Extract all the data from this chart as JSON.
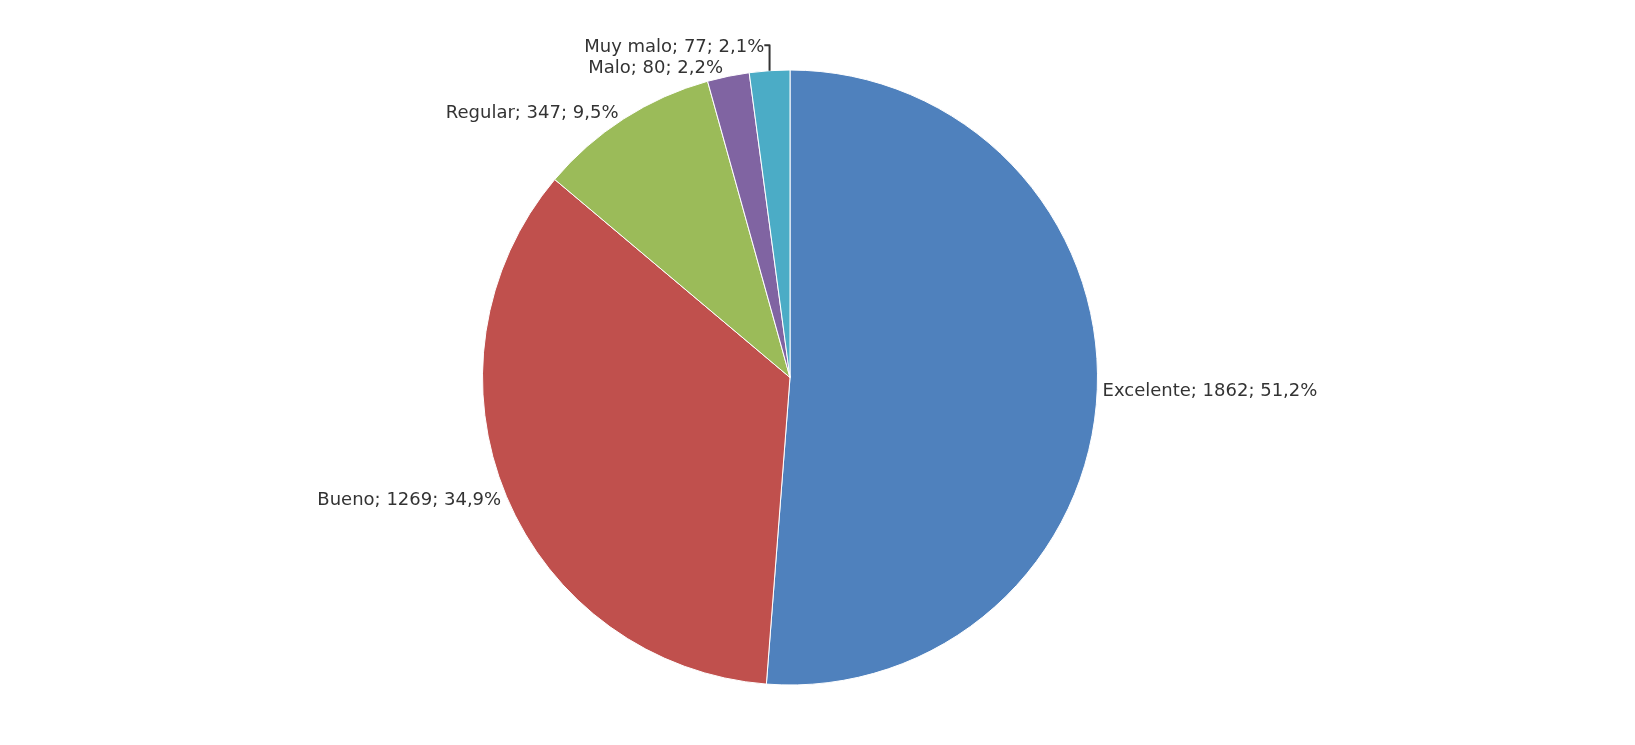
{
  "chart_data": {
    "type": "pie",
    "categories": [
      "Excelente; 1862; 51,2%",
      "Bueno; 1269; 34,9%",
      "Regular; 347; 9,5%",
      "Malo; 80; 2,2%",
      "Muy malo; 77; 2,1%"
    ],
    "values": [
      1862,
      1269,
      347,
      80,
      77
    ],
    "colors": [
      "#4f81bd",
      "#c0504d",
      "#9bbb59",
      "#8064a2",
      "#4bacc6"
    ],
    "legend": false
  }
}
